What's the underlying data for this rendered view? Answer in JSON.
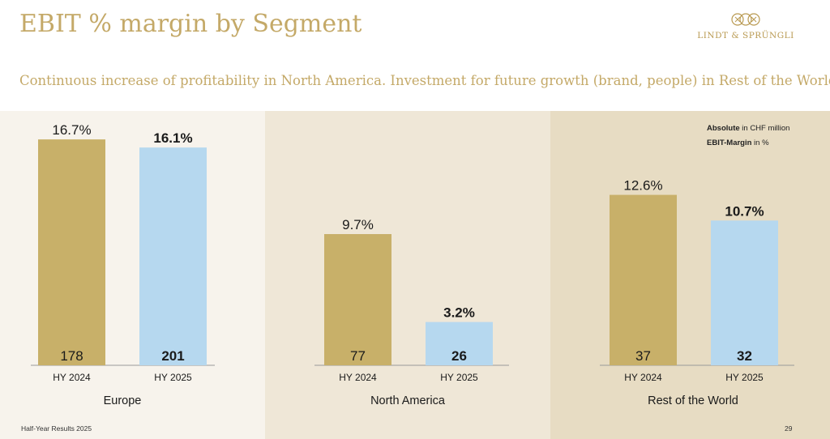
{
  "header": {
    "title": "EBIT % margin by Segment",
    "subtitle": "Continuous increase of profitability in North America. Investment for future growth (brand, people) in Rest of the World"
  },
  "logo": {
    "text": "LINDT & SPRÜNGLI"
  },
  "legend": {
    "absolute_label": "Absolute",
    "absolute_unit": " in CHF million",
    "margin_label": "EBIT-Margin",
    "margin_unit": " in %"
  },
  "footer": {
    "text": "Half-Year Results 2025",
    "page": "29"
  },
  "colors": {
    "hy2024": "#c8b069",
    "hy2025": "#b6d8ef",
    "title": "#c4a968",
    "panel_europe": "#f7f3ec",
    "panel_north_america": "#efe7d7",
    "panel_rest_of_world": "#e7dcc3"
  },
  "chart_data": [
    {
      "type": "bar",
      "segment": "Europe",
      "categories": [
        "HY 2024",
        "HY 2025"
      ],
      "margin_pct": [
        16.7,
        16.1
      ],
      "margin_labels": [
        "16.7%",
        "16.1%"
      ],
      "absolute_chf_m": [
        178,
        201
      ],
      "grid": false
    },
    {
      "type": "bar",
      "segment": "North America",
      "categories": [
        "HY 2024",
        "HY 2025"
      ],
      "margin_pct": [
        9.7,
        3.2
      ],
      "margin_labels": [
        "9.7%",
        "3.2%"
      ],
      "absolute_chf_m": [
        77,
        26
      ],
      "grid": false
    },
    {
      "type": "bar",
      "segment": "Rest of the World",
      "categories": [
        "HY 2024",
        "HY 2025"
      ],
      "margin_pct": [
        12.6,
        10.7
      ],
      "margin_labels": [
        "12.6%",
        "10.7%"
      ],
      "absolute_chf_m": [
        37,
        32
      ],
      "grid": false
    }
  ]
}
